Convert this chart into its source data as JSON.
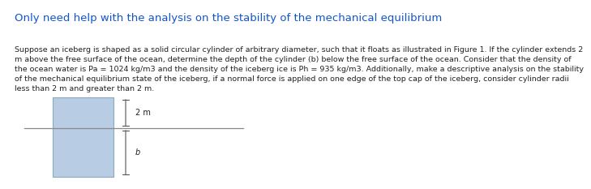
{
  "title": "Only need help with the analysis on the stability of the mechanical equilibrium",
  "title_color": "#1155CC",
  "body_text": "Suppose an iceberg is shaped as a solid circular cylinder of arbitrary diameter, such that it floats as illustrated in Figure 1. If the cylinder extends 2\nm above the free surface of the ocean, determine the depth of the cylinder (b) below the free surface of the ocean. Consider that the density of\nthe ocean water is Pa = 1024 kg/m3 and the density of the iceberg ice is Ph = 935 kg/m3. Additionally, make a descriptive analysis on the stability\nof the mechanical equilibrium state of the iceberg, if a normal force is applied on one edge of the top cap of the iceberg, consider cylinder radii\nless than 2 m and greater than 2 m.",
  "body_fontsize": 6.8,
  "title_fontsize": 9.5,
  "rect_facecolor": "#b8cce4",
  "rect_edgecolor": "#8aaabf",
  "waterline_color": "#888888",
  "arrow_color": "#555555",
  "text_color": "#222222",
  "fig_width": 6.66,
  "fig_height": 2.13
}
